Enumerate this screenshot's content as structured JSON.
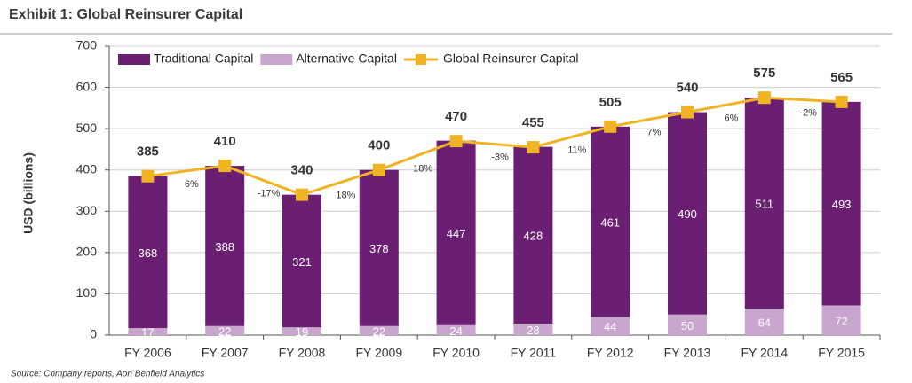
{
  "chart_data": {
    "type": "bar",
    "stacked": true,
    "title": "Exhibit 1: Global Reinsurer Capital",
    "y_label": "USD (billions)",
    "source": "Source: Company reports, Aon Benfield Analytics",
    "categories": [
      "FY 2006",
      "FY 2007",
      "FY 2008",
      "FY 2009",
      "FY 2010",
      "FY 2011",
      "FY 2012",
      "FY 2013",
      "FY 2014",
      "FY 2015"
    ],
    "series": [
      {
        "name": "Traditional Capital",
        "type": "bar",
        "color": "#6b1f73",
        "values": [
          368,
          388,
          321,
          378,
          447,
          428,
          461,
          490,
          511,
          493
        ]
      },
      {
        "name": "Alternative Capital",
        "type": "bar",
        "color": "#c8a6ce",
        "values": [
          17,
          22,
          19,
          22,
          24,
          28,
          44,
          50,
          64,
          72
        ]
      },
      {
        "name": "Global Reinsurer Capital",
        "type": "line",
        "color": "#f0b323",
        "values": [
          385,
          410,
          340,
          400,
          470,
          455,
          505,
          540,
          575,
          565
        ]
      }
    ],
    "growth_labels": [
      "6%",
      "-17%",
      "18%",
      "18%",
      "-3%",
      "11%",
      "7%",
      "6%",
      "-2%"
    ],
    "ylim": [
      0,
      700
    ],
    "yticks": [
      0,
      100,
      200,
      300,
      400,
      500,
      600,
      700
    ],
    "grid": true,
    "legend": "top-left"
  }
}
